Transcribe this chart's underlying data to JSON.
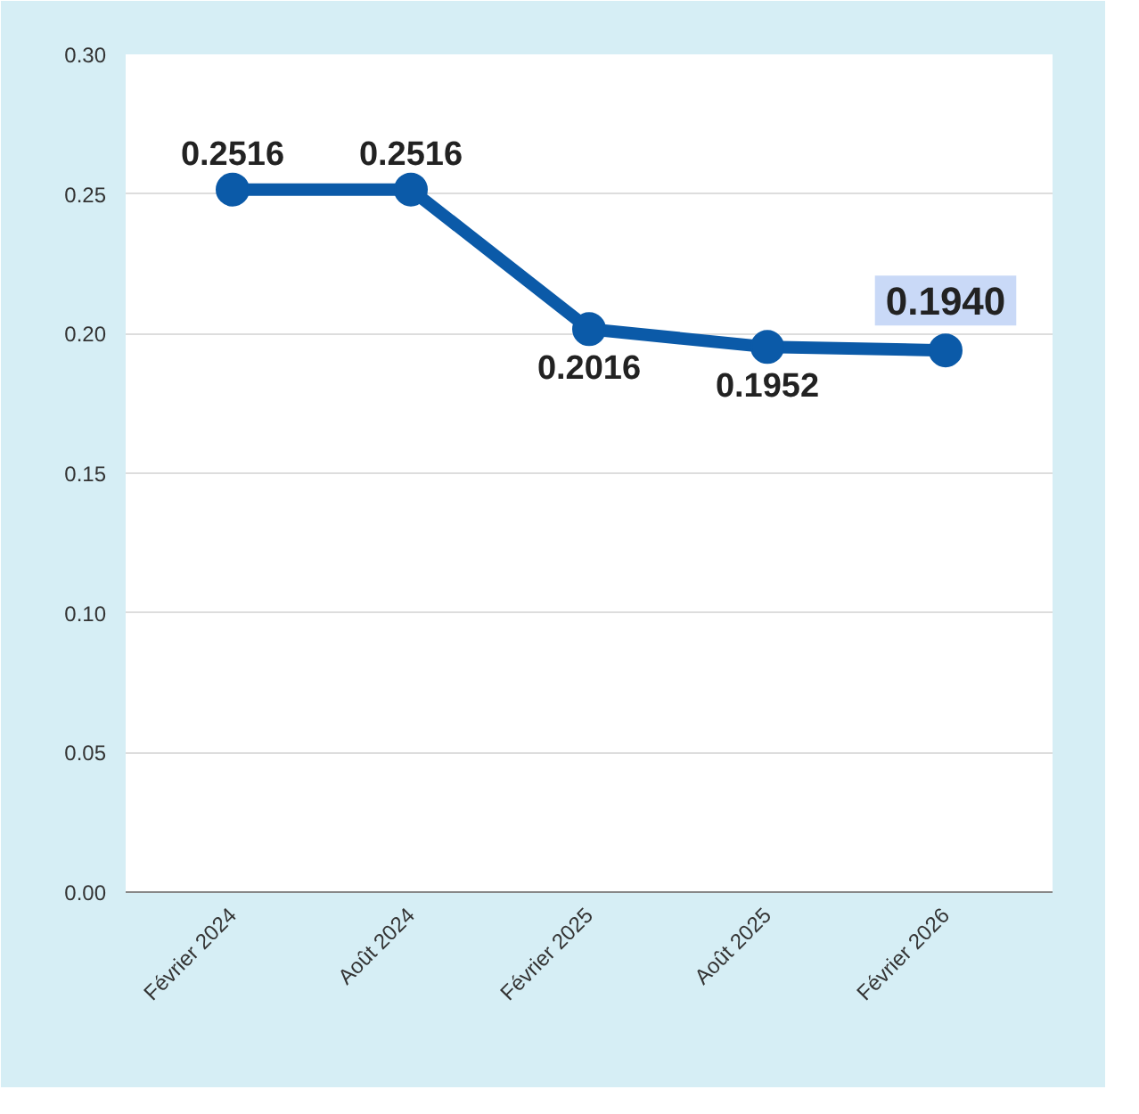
{
  "chart_data": {
    "type": "line",
    "categories": [
      "Février 2024",
      "Août 2024",
      "Février 2025",
      "Août 2025",
      "Février 2026"
    ],
    "values": [
      0.2516,
      0.2516,
      0.2016,
      0.1952,
      0.194
    ],
    "value_labels": [
      "0.2516",
      "0.2516",
      "0.2016",
      "0.1952",
      "0.1940"
    ],
    "color": "#0b5aa8",
    "ylim": [
      0,
      0.3
    ],
    "yticks": [
      {
        "value": 0,
        "label": "0.00"
      },
      {
        "value": 0.05,
        "label": "0.05"
      },
      {
        "value": 0.1,
        "label": "0.10"
      },
      {
        "value": 0.15,
        "label": "0.15"
      },
      {
        "value": 0.2,
        "label": "0.20"
      },
      {
        "value": 0.25,
        "label": "0.25"
      },
      {
        "value": 0.3,
        "label": "0.30"
      }
    ],
    "grid": "y",
    "marker": "circle",
    "line_style": "solid"
  }
}
